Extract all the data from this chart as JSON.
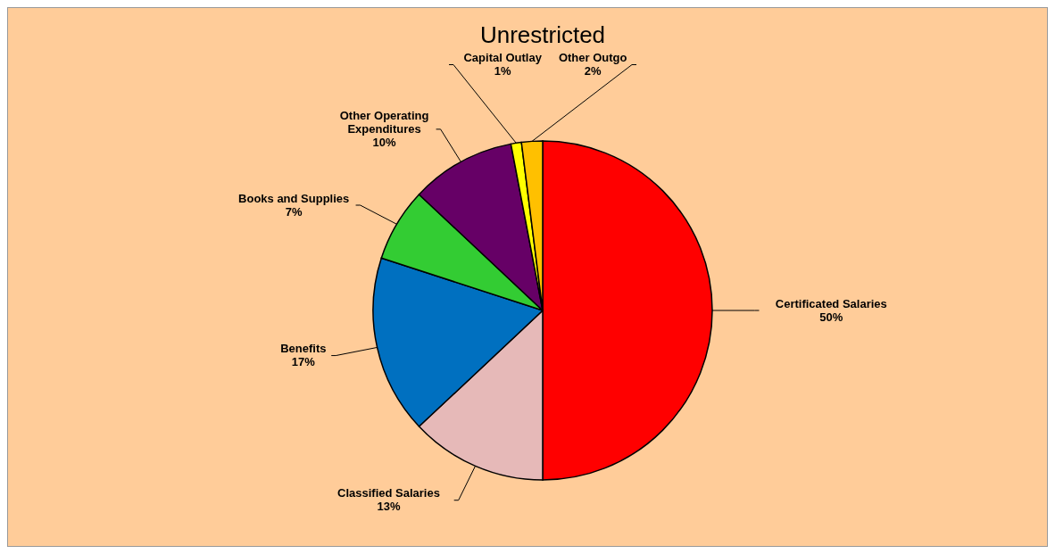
{
  "chart_data": {
    "type": "pie",
    "title": "Unrestricted",
    "categories": [
      "Certificated Salaries",
      "Classified Salaries",
      "Benefits",
      "Books and Supplies",
      "Other Operating Expenditures",
      "Capital Outlay",
      "Other Outgo"
    ],
    "values": [
      50,
      13,
      17,
      7,
      10,
      1,
      2
    ],
    "colors": [
      "#ff0000",
      "#e6b9b8",
      "#0070c0",
      "#33cc33",
      "#660066",
      "#ffff00",
      "#ffc000"
    ],
    "value_labels": [
      "50%",
      "13%",
      "17%",
      "7%",
      "10%",
      "1%",
      "2%"
    ]
  }
}
